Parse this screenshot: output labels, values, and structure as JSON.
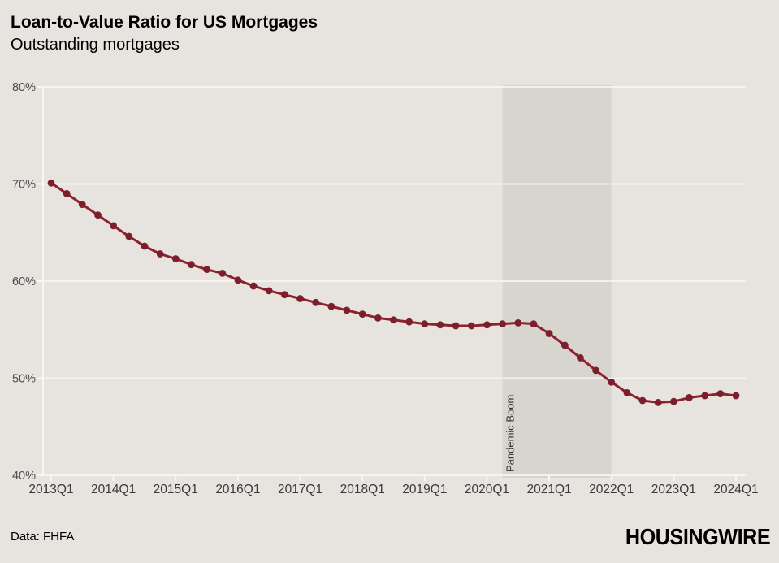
{
  "header": {
    "title": "Loan-to-Value Ratio for US Mortgages",
    "subtitle": "Outstanding mortgages"
  },
  "footer": {
    "source": "Data: FHFA",
    "brand": "HOUSINGWIRE"
  },
  "chart_data": {
    "type": "line",
    "series_name": "Loan-to-value ratio, outstanding US mortgages",
    "x": [
      "2013Q1",
      "2013Q2",
      "2013Q3",
      "2013Q4",
      "2014Q1",
      "2014Q2",
      "2014Q3",
      "2014Q4",
      "2015Q1",
      "2015Q2",
      "2015Q3",
      "2015Q4",
      "2016Q1",
      "2016Q2",
      "2016Q3",
      "2016Q4",
      "2017Q1",
      "2017Q2",
      "2017Q3",
      "2017Q4",
      "2018Q1",
      "2018Q2",
      "2018Q3",
      "2018Q4",
      "2019Q1",
      "2019Q2",
      "2019Q3",
      "2019Q4",
      "2020Q1",
      "2020Q2",
      "2020Q3",
      "2020Q4",
      "2021Q1",
      "2021Q2",
      "2021Q3",
      "2021Q4",
      "2022Q1",
      "2022Q2",
      "2022Q3",
      "2022Q4",
      "2023Q1",
      "2023Q2",
      "2023Q3",
      "2023Q4",
      "2024Q1"
    ],
    "values": [
      70.1,
      69.0,
      67.9,
      66.8,
      65.7,
      64.6,
      63.6,
      62.8,
      62.3,
      61.7,
      61.2,
      60.8,
      60.1,
      59.5,
      59.0,
      58.6,
      58.2,
      57.8,
      57.4,
      57.0,
      56.6,
      56.2,
      56.0,
      55.8,
      55.6,
      55.5,
      55.4,
      55.4,
      55.5,
      55.6,
      55.7,
      55.6,
      54.6,
      53.4,
      52.1,
      50.8,
      49.6,
      48.5,
      47.7,
      47.5,
      47.6,
      48.0,
      48.2,
      48.4,
      48.2
    ],
    "ylim": [
      40,
      80
    ],
    "y_ticks": [
      {
        "value": 80,
        "label": "80%"
      },
      {
        "value": 70,
        "label": "70%"
      },
      {
        "value": 60,
        "label": "60%"
      },
      {
        "value": 50,
        "label": "50%"
      },
      {
        "value": 40,
        "label": "40%"
      }
    ],
    "x_tick_labels": [
      "2013Q1",
      "2014Q1",
      "2015Q1",
      "2016Q1",
      "2017Q1",
      "2018Q1",
      "2019Q1",
      "2020Q1",
      "2021Q1",
      "2022Q1",
      "2023Q1",
      "2024Q1"
    ],
    "grid": true,
    "legend": "none",
    "annotation_band": {
      "from": "2020Q2",
      "to": "2022Q1",
      "label": "Pandemic Boom"
    },
    "colors": {
      "background": "#e7e3de",
      "band": "#d8d4ce",
      "grid": "#f8f6f2",
      "line": "#8e2130",
      "marker": "#7c1e2b",
      "title_text": "#161616",
      "axis_text": "#4c4c4c",
      "annotation_text": "#2e2e2e"
    }
  }
}
